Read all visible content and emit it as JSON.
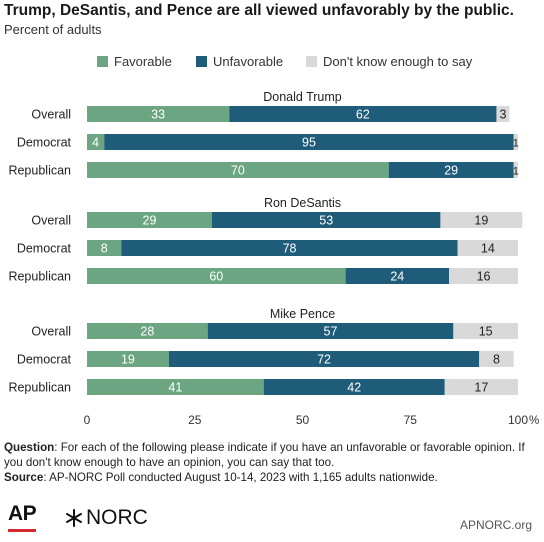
{
  "title": "Trump, DeSantis, and Pence are all viewed unfavorably by the public.",
  "subtitle": "Percent of adults",
  "legend": [
    {
      "label": "Favorable",
      "color": "#6ba582"
    },
    {
      "label": "Unfavorable",
      "color": "#1f5c7a"
    },
    {
      "label": "Don't know enough to say",
      "color": "#d9d9d9"
    }
  ],
  "footnote": {
    "question_label": "Question",
    "question_text": ": For each of the following please indicate if you have an unfavorable or favorable opinion. If you don't know enough to have an opinion, you can say that too.",
    "source_label": "Source",
    "source_text": ": AP-NORC Poll conducted August 10-14, 2023 with 1,165 adults nationwide."
  },
  "footer": {
    "ap_logo": "AP",
    "norc_logo": "NORC",
    "site": "APNORC.org"
  },
  "chart_data": {
    "type": "bar",
    "orientation": "horizontal",
    "stacked": true,
    "xlim": [
      0,
      100
    ],
    "xticks": [
      "0",
      "25",
      "50",
      "75",
      "100"
    ],
    "x_unit": "%",
    "grid": false,
    "legend_position": "top",
    "series_names": [
      "Favorable",
      "Unfavorable",
      "Don't know enough to say"
    ],
    "colors": [
      "#6ba582",
      "#1f5c7a",
      "#d9d9d9"
    ],
    "groups": [
      {
        "name": "Donald Trump",
        "rows": [
          {
            "category": "Overall",
            "values": [
              33,
              62,
              3
            ]
          },
          {
            "category": "Democrat",
            "values": [
              4,
              95,
              1
            ]
          },
          {
            "category": "Republican",
            "values": [
              70,
              29,
              1
            ]
          }
        ]
      },
      {
        "name": "Ron DeSantis",
        "rows": [
          {
            "category": "Overall",
            "values": [
              29,
              53,
              19
            ]
          },
          {
            "category": "Democrat",
            "values": [
              8,
              78,
              14
            ]
          },
          {
            "category": "Republican",
            "values": [
              60,
              24,
              16
            ]
          }
        ]
      },
      {
        "name": "Mike Pence",
        "rows": [
          {
            "category": "Overall",
            "values": [
              28,
              57,
              15
            ]
          },
          {
            "category": "Democrat",
            "values": [
              19,
              72,
              8
            ]
          },
          {
            "category": "Republican",
            "values": [
              41,
              42,
              17
            ]
          }
        ]
      }
    ]
  }
}
